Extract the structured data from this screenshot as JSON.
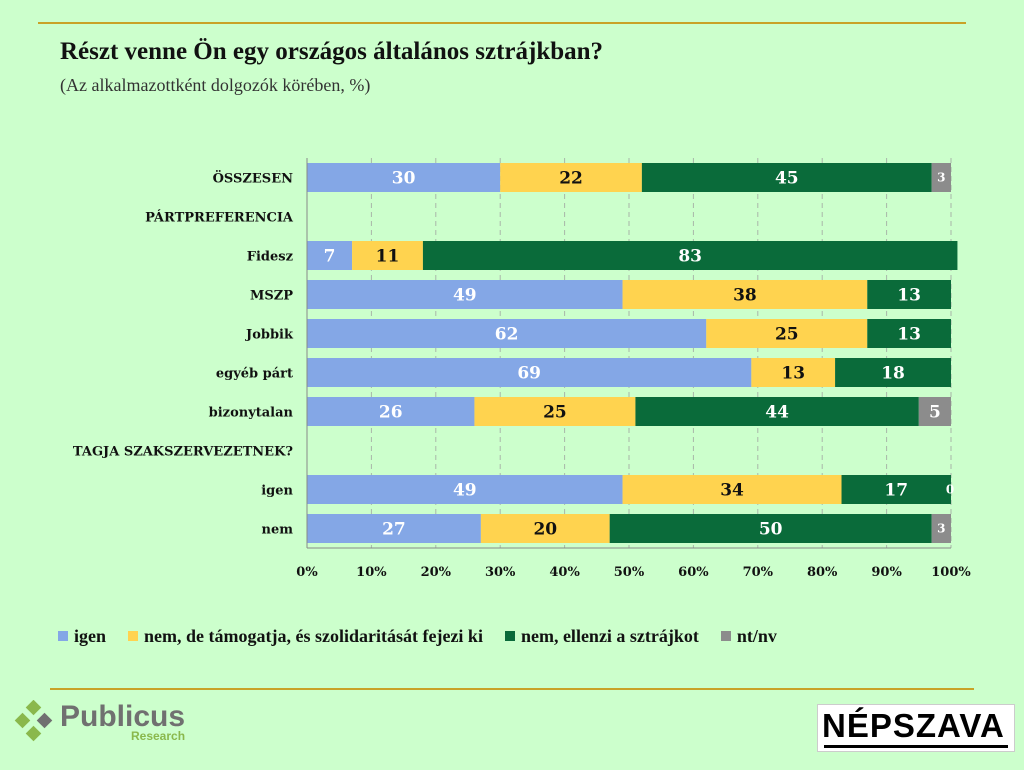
{
  "title": "Részt venne Ön egy országos általános sztrájkban?",
  "subtitle": "(Az alkalmazottként dolgozók körében, %)",
  "colors": {
    "igen": "#84a7e6",
    "tamogat": "#ffd34f",
    "ellenzi": "#0a6b3a",
    "ntnv": "#8c8c8c",
    "gold": "#c9a227"
  },
  "chart_data": {
    "type": "bar",
    "orientation": "horizontal-stacked-100",
    "title": "Részt venne Ön egy országos általános sztrájkban?",
    "xlim": [
      0,
      100
    ],
    "xticks": [
      "0%",
      "10%",
      "20%",
      "30%",
      "40%",
      "50%",
      "60%",
      "70%",
      "80%",
      "90%",
      "100%"
    ],
    "series_names": [
      "igen",
      "nem, de támogatja, és szolidaritását fejezi ki",
      "nem, ellenzi a sztrájkot",
      "nt/nv"
    ],
    "rows": [
      {
        "label": "ÖSSZESEN",
        "values": [
          30,
          22,
          45,
          3
        ],
        "value_labels": [
          "30",
          "22",
          "45",
          "3"
        ]
      },
      {
        "label": "PÁRTPREFERENCIA",
        "header": true
      },
      {
        "label": "Fidesz",
        "values": [
          7,
          11,
          83,
          0
        ],
        "value_labels": [
          "7",
          "11",
          "83",
          ""
        ]
      },
      {
        "label": "MSZP",
        "values": [
          49,
          38,
          13,
          0
        ],
        "value_labels": [
          "49",
          "38",
          "13",
          ""
        ]
      },
      {
        "label": "Jobbik",
        "values": [
          62,
          25,
          13,
          0
        ],
        "value_labels": [
          "62",
          "25",
          "13",
          ""
        ]
      },
      {
        "label": "egyéb párt",
        "values": [
          69,
          13,
          18,
          0
        ],
        "value_labels": [
          "69",
          "13",
          "18",
          ""
        ]
      },
      {
        "label": "bizonytalan",
        "values": [
          26,
          25,
          44,
          5
        ],
        "value_labels": [
          "26",
          "25",
          "44",
          "5"
        ]
      },
      {
        "label": "TAGJA SZAKSZERVEZETNEK?",
        "header": true
      },
      {
        "label": "igen",
        "values": [
          49,
          34,
          17,
          0
        ],
        "value_labels": [
          "49",
          "34",
          "17",
          "0"
        ]
      },
      {
        "label": "nem",
        "values": [
          27,
          20,
          50,
          3
        ],
        "value_labels": [
          "27",
          "20",
          "50",
          "3"
        ]
      }
    ]
  },
  "legend": [
    {
      "label": "igen",
      "color": "#84a7e6"
    },
    {
      "label": "nem, de támogatja, és szolidaritását fejezi ki",
      "color": "#ffd34f"
    },
    {
      "label": "nem, ellenzi a sztrájkot",
      "color": "#0a6b3a"
    },
    {
      "label": "nt/nv",
      "color": "#8c8c8c"
    }
  ],
  "brand_left": {
    "name": "Publicus",
    "sub": "Research"
  },
  "brand_right": {
    "name": "NÉPSZAVA"
  }
}
